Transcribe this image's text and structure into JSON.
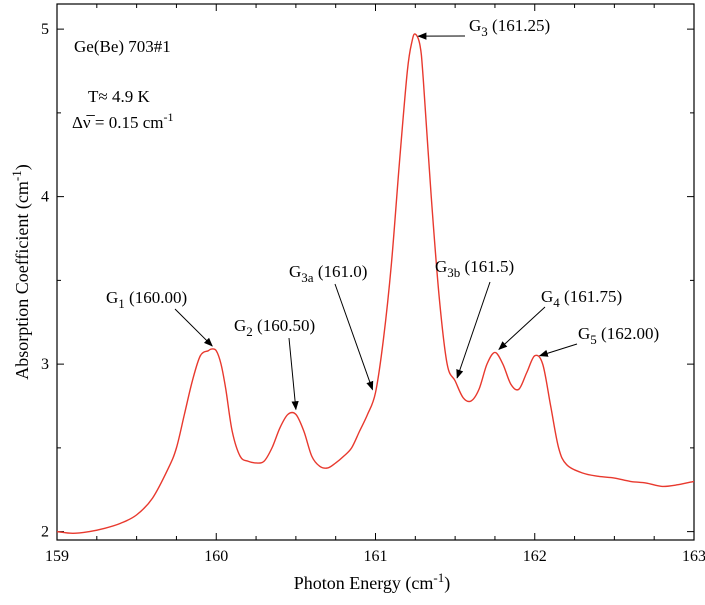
{
  "chart_data": {
    "type": "line",
    "xlabel": "Photon Energy (cm",
    "xlabel_sup": "-1",
    "xlabel_end": ")",
    "ylabel": "Absorption Coefficient (cm",
    "ylabel_sup": "-1",
    "ylabel_end": ")",
    "xlim": [
      159,
      163
    ],
    "ylim": [
      1.95,
      5.15
    ],
    "x_ticks": [
      159,
      160,
      161,
      162,
      163
    ],
    "y_ticks": [
      2,
      3,
      4,
      5
    ],
    "grid": false,
    "line_color": "#e8392e",
    "info": {
      "sample": "Ge(Be) 703#1",
      "temperature": "T≈ 4.9 K",
      "resolution_symbol": "Δν̅",
      "resolution_value": " = 0.15 cm",
      "resolution_unit_sup": "-1"
    },
    "annotations": [
      {
        "main": "G",
        "sub": "1",
        "value": " (160.00)",
        "x": 160.0,
        "y": 3.09
      },
      {
        "main": "G",
        "sub": "2",
        "value": " (160.50)",
        "x": 160.5,
        "y": 2.7
      },
      {
        "main": "G",
        "sub": "3a",
        "value": " (161.0)",
        "x": 161.0,
        "y": 2.83
      },
      {
        "main": "G",
        "sub": "3",
        "value": " (161.25)",
        "x": 161.25,
        "y": 4.97
      },
      {
        "main": "G",
        "sub": "3b",
        "value": " (161.5)",
        "x": 161.5,
        "y": 2.9
      },
      {
        "main": "G",
        "sub": "4",
        "value": " (161.75)",
        "x": 161.75,
        "y": 3.07
      },
      {
        "main": "G",
        "sub": "5",
        "value": " (162.00)",
        "x": 162.0,
        "y": 3.05
      }
    ],
    "series": [
      {
        "x": [
          159.0,
          159.1,
          159.2,
          159.3,
          159.4,
          159.5,
          159.6,
          159.7,
          159.75,
          159.8,
          159.85,
          159.9,
          159.95,
          159.97,
          160.0,
          160.03,
          160.06,
          160.1,
          160.15,
          160.2,
          160.25,
          160.3,
          160.35,
          160.4,
          160.45,
          160.5,
          160.55,
          160.6,
          160.65,
          160.7,
          160.75,
          160.8,
          160.85,
          160.9,
          160.95,
          161.0,
          161.05,
          161.1,
          161.15,
          161.2,
          161.23,
          161.25,
          161.28,
          161.3,
          161.35,
          161.4,
          161.45,
          161.5,
          161.55,
          161.6,
          161.65,
          161.7,
          161.75,
          161.8,
          161.85,
          161.9,
          161.95,
          162.0,
          162.05,
          162.1,
          162.15,
          162.2,
          162.3,
          162.4,
          162.5,
          162.6,
          162.7,
          162.8,
          162.9,
          163.0
        ],
        "values": [
          2.0,
          1.99,
          2.0,
          2.02,
          2.05,
          2.1,
          2.2,
          2.38,
          2.5,
          2.7,
          2.9,
          3.05,
          3.08,
          3.09,
          3.08,
          3.0,
          2.85,
          2.6,
          2.45,
          2.42,
          2.41,
          2.42,
          2.5,
          2.62,
          2.7,
          2.7,
          2.6,
          2.45,
          2.39,
          2.38,
          2.41,
          2.45,
          2.5,
          2.6,
          2.7,
          2.83,
          3.15,
          3.6,
          4.2,
          4.75,
          4.93,
          4.97,
          4.9,
          4.7,
          4.0,
          3.4,
          3.0,
          2.9,
          2.8,
          2.78,
          2.85,
          3.0,
          3.07,
          3.0,
          2.88,
          2.85,
          2.95,
          3.05,
          3.0,
          2.75,
          2.5,
          2.4,
          2.35,
          2.33,
          2.32,
          2.3,
          2.29,
          2.27,
          2.28,
          2.3
        ]
      }
    ]
  }
}
